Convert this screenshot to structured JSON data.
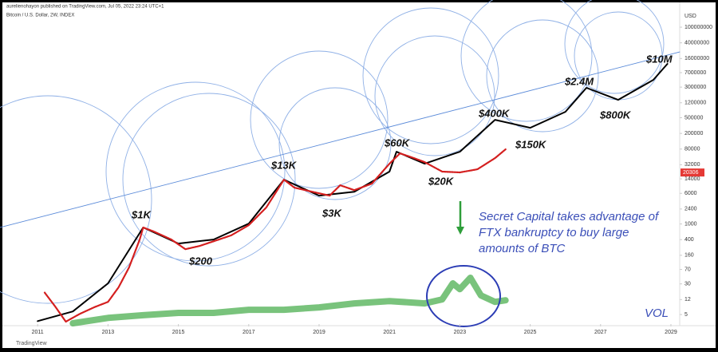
{
  "header": "aurelienohayon published on TradingView.com, Jul 05, 2022 23:24 UTC+1",
  "footer": "TradingView",
  "annotations": [
    "$1K",
    "$200",
    "$13K",
    "$3K",
    "$60K",
    "$20K",
    "$400K",
    "$150K",
    "$2.4M",
    "$800K",
    "$10M"
  ],
  "note": [
    "Secret Capital takes advantage of",
    "FTX bankruptcy to buy large",
    "amounts of BTC"
  ],
  "volume_label": "VOL",
  "chart_data": {
    "type": "line",
    "subtitle": "Bitcoin / U.S. Dollar, 2W, INDEX",
    "currency": "USD",
    "log_scale": true,
    "grid": false,
    "xlim": [
      2009.93,
      2029.25
    ],
    "xticks": [
      2011,
      2013,
      2015,
      2017,
      2019,
      2021,
      2023,
      2025,
      2027,
      2029
    ],
    "ylim": [
      3,
      280000000
    ],
    "yticks": [
      5,
      12,
      30,
      70,
      160,
      400,
      1000,
      2400,
      6000,
      14000,
      32000,
      80000,
      200000,
      500000,
      1200000,
      3000000,
      7000000,
      16000000,
      40000000,
      100000000
    ],
    "last_price": 20306,
    "last_price_color": "#e53935",
    "series": [
      {
        "color": "#5b8bd9",
        "x": [
          2009.93,
          2029.25
        ],
        "values": [
          813,
          23500000
        ]
      },
      {
        "color": "#4caf50",
        "x": [
          2012,
          2013,
          2014,
          2015,
          2016,
          2017,
          2018,
          2019,
          2020,
          2021,
          2022,
          2022.5,
          2022.8,
          2023,
          2023.3,
          2023.6,
          2024,
          2024.3
        ],
        "values": [
          3.0,
          4.1,
          4.8,
          5.5,
          5.5,
          6.6,
          6.6,
          7.6,
          9.6,
          11,
          9.6,
          12.1,
          31,
          22,
          43,
          15.3,
          10.5,
          11.5
        ]
      },
      {
        "color": "#000000",
        "x": [
          2011,
          2012,
          2013,
          2014,
          2015,
          2016,
          2017,
          2018,
          2019,
          2020,
          2021,
          2021.2,
          2022,
          2023,
          2024,
          2025,
          2026,
          2026.6,
          2027.5,
          2028.5,
          2028.9
        ],
        "values": [
          3.4,
          6,
          31,
          813,
          318,
          403,
          1020,
          13370,
          5250,
          6600,
          21400,
          68500,
          34000,
          68500,
          443000,
          278000,
          708000,
          2880000,
          1426000,
          4580000,
          11700000
        ]
      },
      {
        "color": "#d41f1f",
        "x": [
          2011.2,
          2011.5,
          2011.8,
          2012.2,
          2012.6,
          2013,
          2013.3,
          2013.6,
          2013.9,
          2014,
          2014.3,
          2014.8,
          2015.2,
          2015.6,
          2016,
          2016.5,
          2017,
          2017.5,
          2018,
          2018.3,
          2018.8,
          2019.3,
          2019.6,
          2020,
          2020.5,
          2021,
          2021.3,
          2021.7,
          2022,
          2022.5,
          2023,
          2023.5,
          2024,
          2024.3
        ],
        "values": [
          18,
          8,
          3.3,
          5.2,
          7.6,
          10.5,
          24.5,
          79,
          403,
          813,
          645,
          403,
          229,
          275,
          363,
          513,
          933,
          2630,
          13370,
          8380,
          6600,
          5250,
          9640,
          7240,
          10570,
          34000,
          62400,
          47100,
          37300,
          21400,
          20400,
          24500,
          47100,
          78900
        ]
      }
    ]
  }
}
